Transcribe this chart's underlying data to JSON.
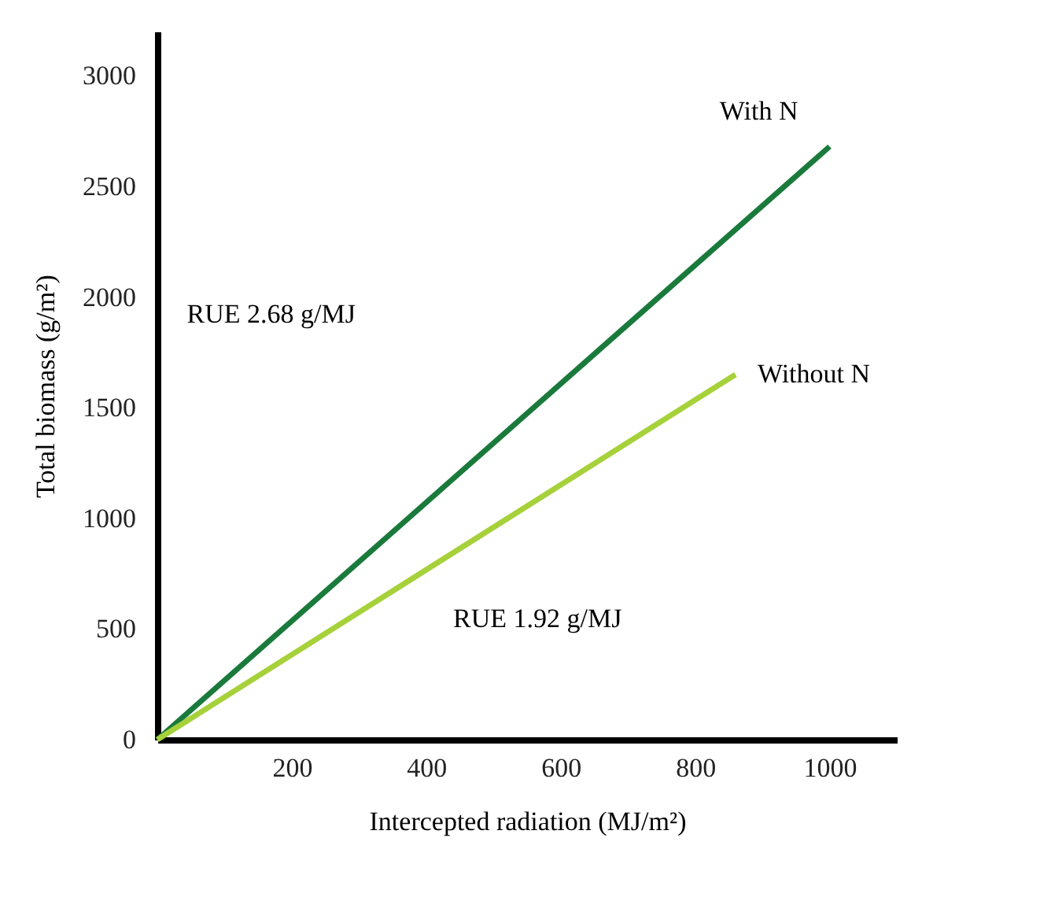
{
  "chart_data": {
    "type": "line",
    "xlabel": "Intercepted radiation (MJ/m²)",
    "ylabel": "Total biomass (g/m²)",
    "series": [
      {
        "name": "With N",
        "color": "#1a7a3c",
        "x": [
          0,
          1000
        ],
        "values": [
          0,
          2680
        ]
      },
      {
        "name": "Without N",
        "color": "#a6d13a",
        "x": [
          0,
          860
        ],
        "values": [
          0,
          1650
        ]
      }
    ],
    "xlim": [
      0,
      1100
    ],
    "xticks": [
      200,
      400,
      600,
      800,
      1000
    ],
    "ylim": [
      0,
      3200
    ],
    "yticks": [
      0,
      500,
      1000,
      1500,
      2000,
      2500,
      3000
    ],
    "annotations": [
      "RUE 2.68 g/MJ",
      "RUE 1.92 g/MJ"
    ],
    "grid": false,
    "marker": "none",
    "line_style": "solid"
  }
}
